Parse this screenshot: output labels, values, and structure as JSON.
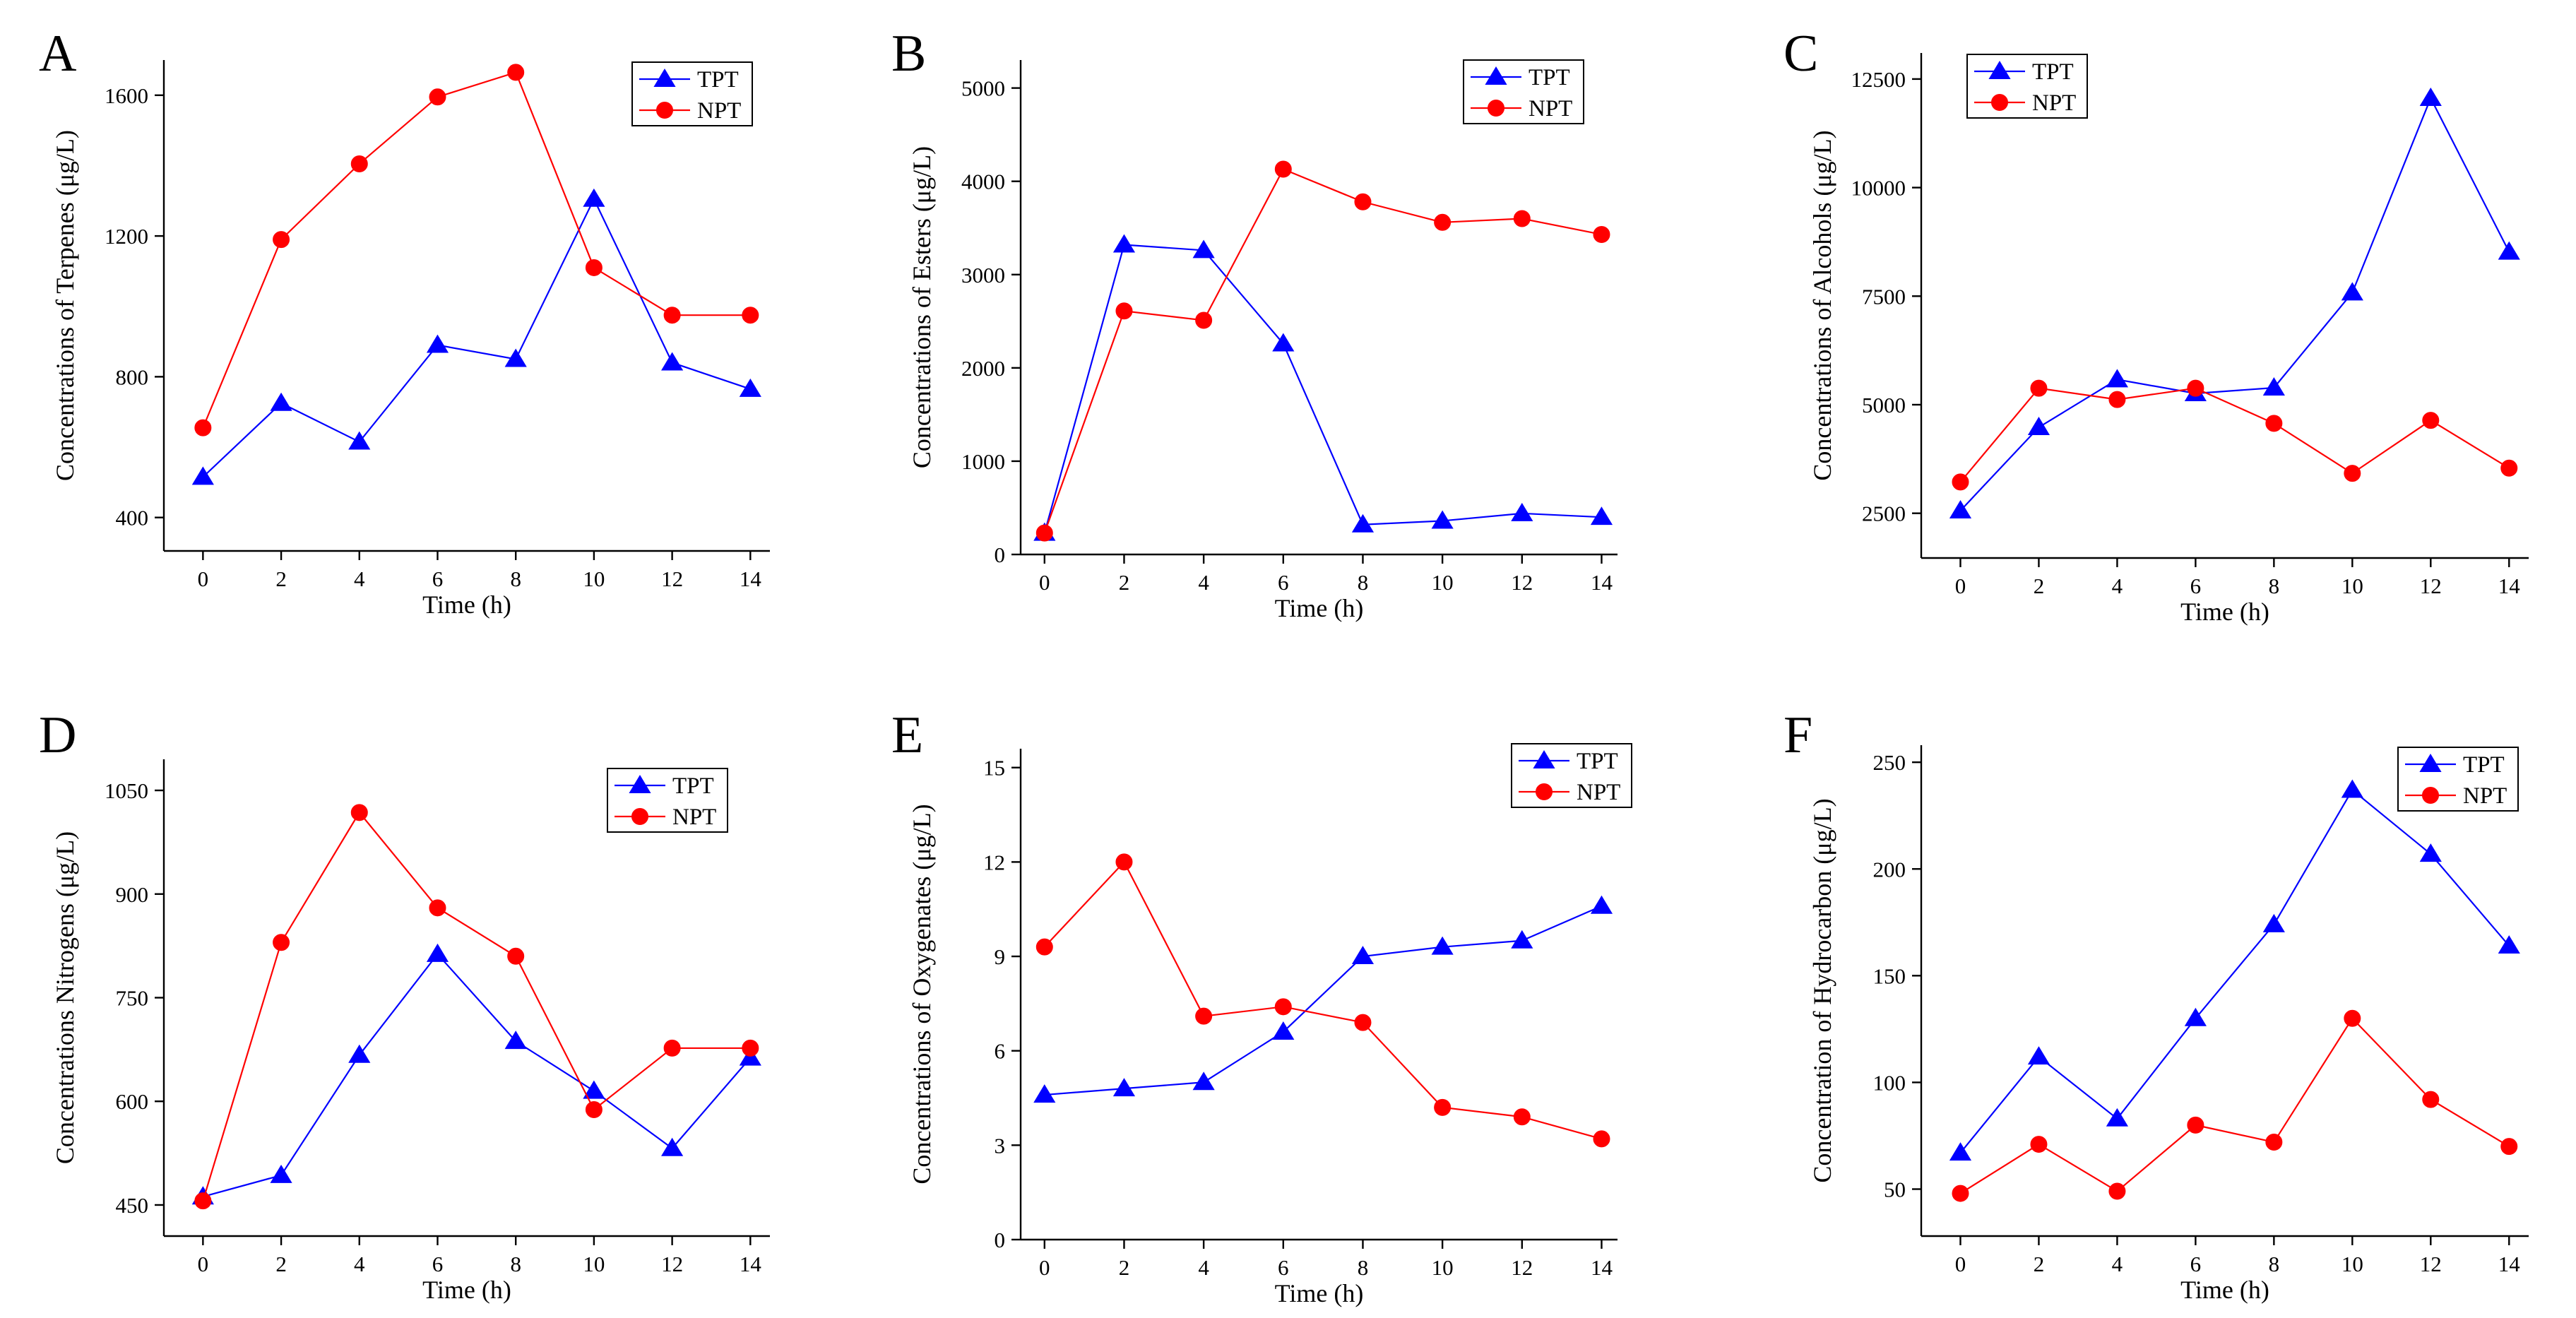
{
  "chart_data": [
    {
      "panel": "A",
      "type": "line",
      "xlabel": "Time (h)",
      "ylabel": "Concentrations of Terpenes (μg/L)",
      "x": [
        0,
        2,
        4,
        6,
        8,
        10,
        12,
        14
      ],
      "xticks": [
        0,
        2,
        4,
        6,
        8,
        10,
        12,
        14
      ],
      "xlim": [
        -1,
        14.5
      ],
      "yticks": [
        400,
        800,
        1200,
        1600
      ],
      "ylim": [
        305,
        1700
      ],
      "legend": "top-right",
      "series": [
        {
          "name": "TPT",
          "color": "#0000ff",
          "marker": "triangle",
          "values": [
            515,
            725,
            615,
            890,
            850,
            1305,
            840,
            765
          ]
        },
        {
          "name": "NPT",
          "color": "#ff0000",
          "marker": "circle",
          "values": [
            655,
            1190,
            1405,
            1595,
            1665,
            1110,
            975,
            975
          ]
        }
      ]
    },
    {
      "panel": "B",
      "type": "line",
      "xlabel": "Time (h)",
      "ylabel": "Concentrations of Esters (μg/L)",
      "x": [
        0,
        2,
        4,
        6,
        8,
        10,
        12,
        14
      ],
      "xticks": [
        0,
        2,
        4,
        6,
        8,
        10,
        12,
        14
      ],
      "xlim": [
        -0.6,
        14.4
      ],
      "yticks": [
        0,
        1000,
        2000,
        3000,
        4000,
        5000
      ],
      "ylim": [
        0,
        5300
      ],
      "legend": "top-right",
      "series": [
        {
          "name": "TPT",
          "color": "#0000ff",
          "marker": "triangle",
          "values": [
            230,
            3320,
            3260,
            2260,
            320,
            360,
            440,
            400
          ]
        },
        {
          "name": "NPT",
          "color": "#ff0000",
          "marker": "circle",
          "values": [
            230,
            2610,
            2510,
            4130,
            3780,
            3560,
            3600,
            3430
          ]
        }
      ]
    },
    {
      "panel": "C",
      "type": "line",
      "xlabel": "Time (h)",
      "ylabel": "Concentrations of Alcohols (μg/L)",
      "x": [
        0,
        2,
        4,
        6,
        8,
        10,
        12,
        14
      ],
      "xticks": [
        0,
        2,
        4,
        6,
        8,
        10,
        12,
        14
      ],
      "xlim": [
        -1,
        14.5
      ],
      "yticks": [
        2500,
        5000,
        7500,
        10000,
        12500
      ],
      "ylim": [
        1470,
        13100
      ],
      "legend": "top-left",
      "series": [
        {
          "name": "TPT",
          "color": "#0000ff",
          "marker": "triangle",
          "values": [
            2560,
            4480,
            5580,
            5260,
            5390,
            7580,
            12060,
            8520
          ]
        },
        {
          "name": "NPT",
          "color": "#ff0000",
          "marker": "circle",
          "values": [
            3220,
            5380,
            5120,
            5380,
            4570,
            3420,
            4640,
            3540
          ]
        }
      ]
    },
    {
      "panel": "D",
      "type": "line",
      "xlabel": "Time (h)",
      "ylabel": "Concentrations Nitrogens (μg/L)",
      "x": [
        0,
        2,
        4,
        6,
        8,
        10,
        12,
        14
      ],
      "xticks": [
        0,
        2,
        4,
        6,
        8,
        10,
        12,
        14
      ],
      "xlim": [
        -1,
        14.5
      ],
      "yticks": [
        450,
        600,
        750,
        900,
        1050
      ],
      "ylim": [
        405,
        1095
      ],
      "legend": "top-right",
      "series": [
        {
          "name": "TPT",
          "color": "#0000ff",
          "marker": "triangle",
          "values": [
            462,
            493,
            667,
            813,
            687,
            615,
            532,
            663
          ]
        },
        {
          "name": "NPT",
          "color": "#ff0000",
          "marker": "circle",
          "values": [
            456,
            830,
            1018,
            880,
            810,
            588,
            677,
            677
          ]
        }
      ]
    },
    {
      "panel": "E",
      "type": "line",
      "xlabel": "Time (h)",
      "ylabel": "Concentrations of Oxygenates (μg/L)",
      "x": [
        0,
        2,
        4,
        6,
        8,
        10,
        12,
        14
      ],
      "xticks": [
        0,
        2,
        4,
        6,
        8,
        10,
        12,
        14
      ],
      "xlim": [
        -0.6,
        14.4
      ],
      "yticks": [
        0,
        3,
        6,
        9,
        12,
        15
      ],
      "ylim": [
        0,
        15.6
      ],
      "legend": "top-right",
      "series": [
        {
          "name": "TPT",
          "color": "#0000ff",
          "marker": "triangle",
          "values": [
            4.6,
            4.8,
            5.0,
            6.6,
            9.0,
            9.3,
            9.5,
            10.6
          ]
        },
        {
          "name": "NPT",
          "color": "#ff0000",
          "marker": "circle",
          "values": [
            9.3,
            12.0,
            7.1,
            7.4,
            6.9,
            4.2,
            3.9,
            3.2
          ]
        }
      ]
    },
    {
      "panel": "F",
      "type": "line",
      "xlabel": "Time (h)",
      "ylabel": "Concentration of Hydrocarbon (μg/L)",
      "x": [
        0,
        2,
        4,
        6,
        8,
        10,
        12,
        14
      ],
      "xticks": [
        0,
        2,
        4,
        6,
        8,
        10,
        12,
        14
      ],
      "xlim": [
        -1,
        14.5
      ],
      "yticks": [
        50,
        100,
        150,
        200,
        250
      ],
      "ylim": [
        28,
        258
      ],
      "legend": "top-right",
      "series": [
        {
          "name": "TPT",
          "color": "#0000ff",
          "marker": "triangle",
          "values": [
            67,
            112,
            83,
            130,
            174,
            237,
            207,
            164
          ]
        },
        {
          "name": "NPT",
          "color": "#ff0000",
          "marker": "circle",
          "values": [
            48,
            71,
            49,
            80,
            72,
            130,
            92,
            70
          ]
        }
      ]
    }
  ]
}
